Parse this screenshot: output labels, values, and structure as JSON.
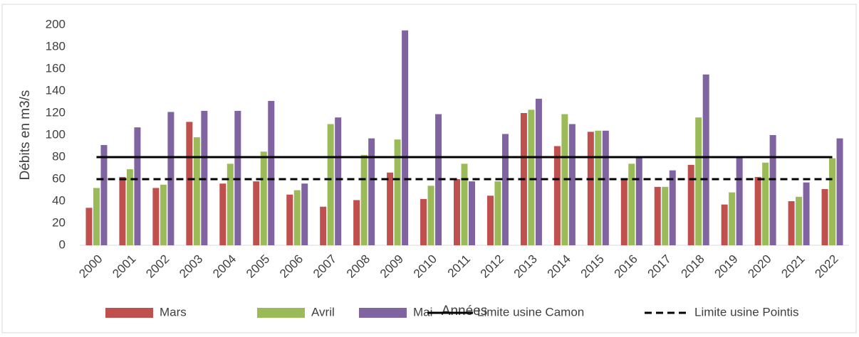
{
  "chart_data": {
    "type": "bar",
    "x_label": "Années",
    "y_label": "Débits en m3/s",
    "categories": [
      "2000",
      "2001",
      "2002",
      "2003",
      "2004",
      "2005",
      "2006",
      "2007",
      "2008",
      "2009",
      "2010",
      "2011",
      "2012",
      "2013",
      "2014",
      "2015",
      "2016",
      "2017",
      "2018",
      "2019",
      "2020",
      "2021",
      "2022"
    ],
    "series": [
      {
        "name": "Mars",
        "color": "#c0504d",
        "values": [
          34,
          62,
          52,
          112,
          56,
          58,
          46,
          35,
          41,
          66,
          42,
          60,
          45,
          120,
          90,
          103,
          60,
          53,
          73,
          37,
          62,
          40,
          51
        ]
      },
      {
        "name": "Avril",
        "color": "#9bbb59",
        "values": [
          52,
          69,
          55,
          98,
          74,
          85,
          50,
          110,
          82,
          96,
          54,
          74,
          58,
          123,
          119,
          104,
          74,
          53,
          116,
          48,
          75,
          44,
          79
        ]
      },
      {
        "name": "Mai",
        "color": "#8064a2",
        "values": [
          91,
          107,
          121,
          122,
          122,
          131,
          56,
          116,
          97,
          195,
          119,
          58,
          101,
          133,
          110,
          104,
          80,
          68,
          155,
          79,
          100,
          57,
          97
        ]
      },
      {
        "name": "Limite usine Camon",
        "color": "#000000",
        "line": "solid",
        "values": [
          80,
          80,
          80,
          80,
          80,
          80,
          80,
          80,
          80,
          80,
          80,
          80,
          80,
          80,
          80,
          80,
          80,
          80,
          80,
          80,
          80,
          80,
          80
        ]
      },
      {
        "name": "Limite usine Pointis",
        "color": "#000000",
        "line": "dashed",
        "values": [
          60,
          60,
          60,
          60,
          60,
          60,
          60,
          60,
          60,
          60,
          60,
          60,
          60,
          60,
          60,
          60,
          60,
          60,
          60,
          60,
          60,
          60,
          60
        ]
      }
    ],
    "ylim": [
      0,
      200
    ],
    "yticks": [
      0,
      20,
      40,
      60,
      80,
      100,
      120,
      140,
      160,
      180,
      200
    ],
    "grid": false,
    "legend": "bottom"
  }
}
